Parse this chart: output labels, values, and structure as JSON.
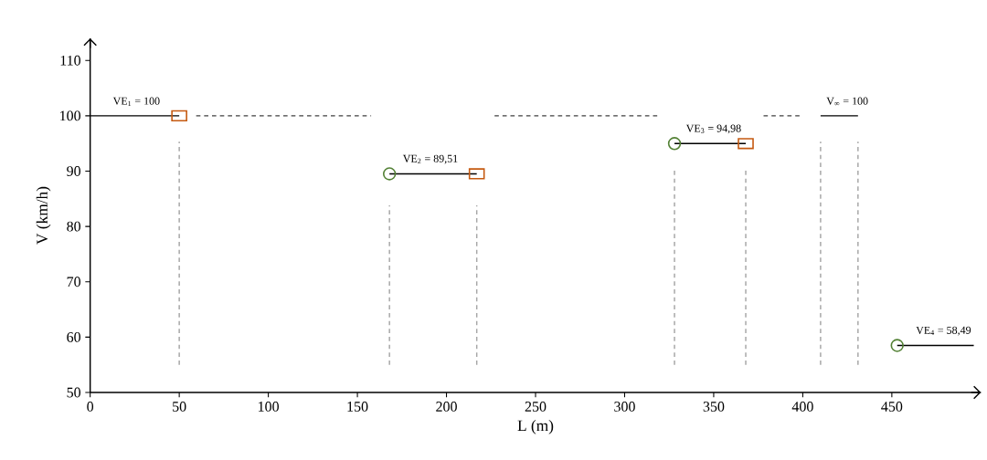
{
  "chart_data": {
    "type": "line",
    "xlabel": "L (m)",
    "ylabel": "V (km/h)",
    "xlim": [
      0,
      500
    ],
    "ylim": [
      50,
      114
    ],
    "xticks": [
      0,
      50,
      100,
      150,
      200,
      250,
      300,
      350,
      400,
      450
    ],
    "yticks": [
      50,
      60,
      70,
      80,
      90,
      100,
      110
    ],
    "series": [
      {
        "color": "#a6a6a6",
        "line_style": "dashed",
        "marker": "none",
        "x": [
          50,
          50
        ],
        "values": [
          55,
          95.3
        ]
      },
      {
        "color": "#a6a6a6",
        "line_style": "dashed",
        "marker": "none",
        "x": [
          168,
          168
        ],
        "values": [
          55,
          83.8
        ]
      },
      {
        "color": "#a6a6a6",
        "line_style": "dashed",
        "marker": "none",
        "x": [
          217,
          217
        ],
        "values": [
          55,
          83.8
        ]
      },
      {
        "color": "#a6a6a6",
        "line_style": "dashed",
        "marker": "none",
        "x": [
          328,
          328
        ],
        "values": [
          55,
          90.4
        ]
      },
      {
        "color": "#a6a6a6",
        "line_style": "dashed",
        "marker": "none",
        "x": [
          368,
          368
        ],
        "values": [
          55,
          90.4
        ]
      },
      {
        "color": "#a6a6a6",
        "line_style": "dashed",
        "marker": "none",
        "x": [
          410,
          410
        ],
        "values": [
          55,
          95.3
        ]
      },
      {
        "color": "#a6a6a6",
        "line_style": "dashed",
        "marker": "none",
        "x": [
          431,
          431
        ],
        "values": [
          55,
          95.3
        ]
      },
      {
        "color": "#404040",
        "line_style": "dashed",
        "marker": "none",
        "x": [
          59.5,
          157.7
        ],
        "values": [
          100,
          100
        ]
      },
      {
        "color": "#404040",
        "line_style": "dashed",
        "marker": "none",
        "x": [
          227,
          319
        ],
        "values": [
          100,
          100
        ]
      },
      {
        "color": "#404040",
        "line_style": "dashed",
        "marker": "none",
        "x": [
          378,
          399
        ],
        "values": [
          100,
          100
        ]
      },
      {
        "color": "#000000",
        "line_style": "solid",
        "marker": "none",
        "x": [
          0,
          50
        ],
        "values": [
          100,
          100
        ]
      },
      {
        "color": "#000000",
        "line_style": "solid",
        "marker": "none",
        "x": [
          168,
          217
        ],
        "values": [
          89.51,
          89.51
        ]
      },
      {
        "color": "#000000",
        "line_style": "solid",
        "marker": "none",
        "x": [
          328,
          368
        ],
        "values": [
          94.98,
          94.98
        ]
      },
      {
        "color": "#000000",
        "line_style": "solid",
        "marker": "none",
        "x": [
          410,
          431
        ],
        "values": [
          100,
          100
        ]
      },
      {
        "color": "#000000",
        "line_style": "solid",
        "marker": "none",
        "x": [
          453,
          496
        ],
        "values": [
          58.49,
          58.49
        ]
      },
      {
        "type": "scatter",
        "color": "#538135",
        "marker": "circle",
        "x": [
          168,
          328,
          453
        ],
        "values": [
          89.51,
          94.98,
          58.49
        ]
      },
      {
        "type": "scatter",
        "color": "#c55a11",
        "marker": "square",
        "x": [
          50,
          217,
          368
        ],
        "values": [
          100,
          89.51,
          94.98
        ]
      }
    ],
    "annotations": [
      {
        "text": "VE$_{1}$ = 100",
        "x": 26,
        "y": 100
      },
      {
        "text": "VE$_{2}$ = 89,51",
        "x": 191,
        "y": 89.51
      },
      {
        "text": "VE$_{3}$ = 94,98",
        "x": 350,
        "y": 94.98
      },
      {
        "text": "V$_{∞}$ = 100",
        "x": 425,
        "y": 100
      },
      {
        "text": "VE$_{4}$ = 58,49",
        "x": 479,
        "y": 58.49
      }
    ]
  }
}
